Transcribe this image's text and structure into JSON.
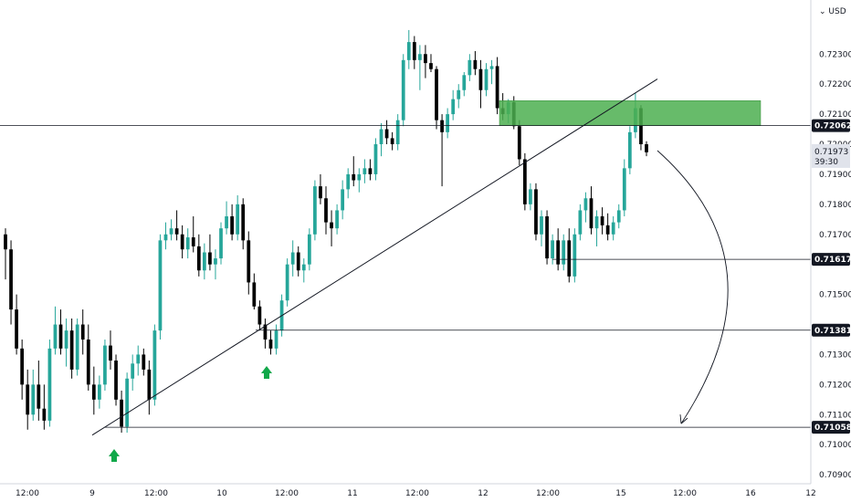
{
  "chart_data": {
    "type": "candlestick",
    "currency": "USD",
    "y_axis": {
      "range": [
        0.7087,
        0.7248
      ],
      "ticks": [
        "0.72300",
        "0.72200",
        "0.72100",
        "0.72000",
        "0.71900",
        "0.71800",
        "0.71700",
        "0.71500",
        "0.71300",
        "0.71200",
        "0.71100",
        "0.71000",
        "0.70900"
      ]
    },
    "x_axis": {
      "ticks": [
        "12:00",
        "9",
        "12:00",
        "10",
        "12:00",
        "11",
        "12:00",
        "12",
        "12:00",
        "15",
        "12:00",
        "16",
        "12"
      ]
    },
    "levels": [
      {
        "value": 0.72062,
        "label": "0.72062"
      },
      {
        "value": 0.71617,
        "label": "0.71617"
      },
      {
        "value": 0.71381,
        "label": "0.71381"
      },
      {
        "value": 0.71058,
        "label": "0.71058"
      }
    ],
    "last_price": {
      "label": "0.71973",
      "countdown": "39:30"
    },
    "resistance_zone": {
      "low": 0.72062,
      "high": 0.72145
    },
    "trendline": {
      "from": 0.71032,
      "to": 0.72217
    },
    "candles_ohlc": [
      [
        0.717,
        0.7172,
        0.7155,
        0.7165
      ],
      [
        0.7165,
        0.7168,
        0.714,
        0.7145
      ],
      [
        0.7145,
        0.715,
        0.713,
        0.7132
      ],
      [
        0.7132,
        0.7135,
        0.7115,
        0.712
      ],
      [
        0.712,
        0.7125,
        0.7105,
        0.711
      ],
      [
        0.711,
        0.7125,
        0.7108,
        0.712
      ],
      [
        0.712,
        0.7128,
        0.7108,
        0.7112
      ],
      [
        0.7112,
        0.712,
        0.7105,
        0.7108
      ],
      [
        0.7108,
        0.7135,
        0.7106,
        0.7132
      ],
      [
        0.7132,
        0.7146,
        0.713,
        0.714
      ],
      [
        0.714,
        0.7145,
        0.713,
        0.7132
      ],
      [
        0.7132,
        0.7142,
        0.7126,
        0.7138
      ],
      [
        0.7138,
        0.7142,
        0.7122,
        0.7125
      ],
      [
        0.7125,
        0.7142,
        0.7123,
        0.714
      ],
      [
        0.714,
        0.7145,
        0.713,
        0.7135
      ],
      [
        0.7135,
        0.714,
        0.7118,
        0.712
      ],
      [
        0.712,
        0.7126,
        0.711,
        0.7115
      ],
      [
        0.7115,
        0.7123,
        0.7112,
        0.712
      ],
      [
        0.712,
        0.7135,
        0.7118,
        0.7133
      ],
      [
        0.7133,
        0.7138,
        0.7125,
        0.7128
      ],
      [
        0.7128,
        0.713,
        0.7113,
        0.7115
      ],
      [
        0.7115,
        0.7118,
        0.7104,
        0.7106
      ],
      [
        0.7106,
        0.7124,
        0.7104,
        0.7122
      ],
      [
        0.7122,
        0.713,
        0.7118,
        0.7127
      ],
      [
        0.7127,
        0.7133,
        0.7123,
        0.713
      ],
      [
        0.713,
        0.7132,
        0.7123,
        0.7125
      ],
      [
        0.7125,
        0.7128,
        0.711,
        0.7115
      ],
      [
        0.7115,
        0.714,
        0.7113,
        0.7138
      ],
      [
        0.7138,
        0.717,
        0.7135,
        0.7168
      ],
      [
        0.7168,
        0.7174,
        0.7165,
        0.717
      ],
      [
        0.717,
        0.7175,
        0.7168,
        0.7172
      ],
      [
        0.7172,
        0.7178,
        0.7168,
        0.717
      ],
      [
        0.717,
        0.7173,
        0.7162,
        0.7165
      ],
      [
        0.7165,
        0.7172,
        0.7162,
        0.7169
      ],
      [
        0.7169,
        0.7176,
        0.7164,
        0.7166
      ],
      [
        0.7166,
        0.717,
        0.7156,
        0.7158
      ],
      [
        0.7158,
        0.7167,
        0.7155,
        0.7164
      ],
      [
        0.7164,
        0.717,
        0.7158,
        0.716
      ],
      [
        0.716,
        0.7165,
        0.7155,
        0.7162
      ],
      [
        0.7162,
        0.7174,
        0.716,
        0.7172
      ],
      [
        0.7172,
        0.7181,
        0.717,
        0.7176
      ],
      [
        0.7176,
        0.718,
        0.7168,
        0.717
      ],
      [
        0.717,
        0.7183,
        0.7168,
        0.718
      ],
      [
        0.718,
        0.7182,
        0.7165,
        0.7168
      ],
      [
        0.7168,
        0.7171,
        0.715,
        0.7154
      ],
      [
        0.7154,
        0.7157,
        0.7145,
        0.7146
      ],
      [
        0.7146,
        0.7148,
        0.7138,
        0.714
      ],
      [
        0.714,
        0.7142,
        0.7132,
        0.7135
      ],
      [
        0.7135,
        0.7138,
        0.713,
        0.7132
      ],
      [
        0.7132,
        0.714,
        0.713,
        0.7138
      ],
      [
        0.7138,
        0.715,
        0.7136,
        0.7148
      ],
      [
        0.7148,
        0.7162,
        0.7146,
        0.716
      ],
      [
        0.716,
        0.7168,
        0.7156,
        0.7164
      ],
      [
        0.7164,
        0.7166,
        0.7156,
        0.7158
      ],
      [
        0.7158,
        0.7162,
        0.7154,
        0.716
      ],
      [
        0.716,
        0.7172,
        0.7158,
        0.717
      ],
      [
        0.717,
        0.7188,
        0.7168,
        0.7186
      ],
      [
        0.7186,
        0.719,
        0.718,
        0.7182
      ],
      [
        0.7182,
        0.7186,
        0.717,
        0.7174
      ],
      [
        0.7174,
        0.7178,
        0.7166,
        0.7172
      ],
      [
        0.7172,
        0.718,
        0.717,
        0.7178
      ],
      [
        0.7178,
        0.7188,
        0.7175,
        0.7185
      ],
      [
        0.7185,
        0.7192,
        0.7182,
        0.719
      ],
      [
        0.719,
        0.7196,
        0.7186,
        0.7188
      ],
      [
        0.7188,
        0.7192,
        0.7184,
        0.719
      ],
      [
        0.719,
        0.7195,
        0.7187,
        0.7192
      ],
      [
        0.7192,
        0.7195,
        0.7188,
        0.719
      ],
      [
        0.719,
        0.7202,
        0.7188,
        0.72
      ],
      [
        0.72,
        0.7207,
        0.7196,
        0.7205
      ],
      [
        0.7205,
        0.7208,
        0.72,
        0.7202
      ],
      [
        0.7202,
        0.7204,
        0.7198,
        0.72
      ],
      [
        0.72,
        0.721,
        0.7198,
        0.7208
      ],
      [
        0.7208,
        0.723,
        0.7206,
        0.7228
      ],
      [
        0.7228,
        0.7238,
        0.7225,
        0.7234
      ],
      [
        0.7234,
        0.7236,
        0.7225,
        0.7228
      ],
      [
        0.7228,
        0.7233,
        0.7218,
        0.723
      ],
      [
        0.723,
        0.7233,
        0.7222,
        0.7227
      ],
      [
        0.7227,
        0.723,
        0.7224,
        0.7225
      ],
      [
        0.7225,
        0.7226,
        0.7205,
        0.7208
      ],
      [
        0.7208,
        0.721,
        0.7186,
        0.7204
      ],
      [
        0.7204,
        0.7212,
        0.7202,
        0.721
      ],
      [
        0.721,
        0.7218,
        0.7208,
        0.7215
      ],
      [
        0.7215,
        0.722,
        0.7212,
        0.7218
      ],
      [
        0.7218,
        0.7224,
        0.7216,
        0.7223
      ],
      [
        0.7223,
        0.723,
        0.7221,
        0.7228
      ],
      [
        0.7228,
        0.7231,
        0.7223,
        0.7225
      ],
      [
        0.7225,
        0.7228,
        0.7212,
        0.7218
      ],
      [
        0.7218,
        0.7227,
        0.7216,
        0.7225
      ],
      [
        0.7225,
        0.7228,
        0.722,
        0.7226
      ],
      [
        0.7226,
        0.7229,
        0.721,
        0.7212
      ],
      [
        0.7212,
        0.7217,
        0.7208,
        0.721
      ],
      [
        0.721,
        0.7215,
        0.7207,
        0.7214
      ],
      [
        0.7214,
        0.7216,
        0.7205,
        0.7206
      ],
      [
        0.7206,
        0.7208,
        0.7193,
        0.7195
      ],
      [
        0.7195,
        0.7197,
        0.7178,
        0.718
      ],
      [
        0.718,
        0.7187,
        0.7178,
        0.7185
      ],
      [
        0.7185,
        0.7187,
        0.7168,
        0.717
      ],
      [
        0.717,
        0.7178,
        0.7166,
        0.7176
      ],
      [
        0.7176,
        0.7178,
        0.716,
        0.7162
      ],
      [
        0.7162,
        0.717,
        0.716,
        0.7168
      ],
      [
        0.7168,
        0.7172,
        0.7158,
        0.716
      ],
      [
        0.716,
        0.717,
        0.7158,
        0.7168
      ],
      [
        0.7168,
        0.7172,
        0.7154,
        0.7156
      ],
      [
        0.7156,
        0.7172,
        0.7154,
        0.717
      ],
      [
        0.717,
        0.718,
        0.7168,
        0.7178
      ],
      [
        0.7178,
        0.7184,
        0.7174,
        0.7182
      ],
      [
        0.7182,
        0.7186,
        0.717,
        0.7172
      ],
      [
        0.7172,
        0.7178,
        0.7166,
        0.7176
      ],
      [
        0.7176,
        0.7179,
        0.717,
        0.7173
      ],
      [
        0.7173,
        0.7177,
        0.7168,
        0.717
      ],
      [
        0.717,
        0.7176,
        0.7168,
        0.7174
      ],
      [
        0.7174,
        0.718,
        0.7172,
        0.7178
      ],
      [
        0.7178,
        0.7195,
        0.7176,
        0.7192
      ],
      [
        0.7192,
        0.7206,
        0.719,
        0.7204
      ],
      [
        0.7204,
        0.7217,
        0.7202,
        0.7212
      ],
      [
        0.7212,
        0.7213,
        0.7198,
        0.72
      ],
      [
        0.72,
        0.7201,
        0.7196,
        0.71973
      ]
    ]
  },
  "annotations": {
    "up_arrow_color": "#26a69a",
    "target_arrow": "curved-down"
  },
  "colors": {
    "bull": "#26a69a",
    "bear": "#000000",
    "zone": "#4caf50",
    "level_label_bg": "#131722",
    "last_price_bg": "#e0e3eb",
    "text": "#131722"
  }
}
